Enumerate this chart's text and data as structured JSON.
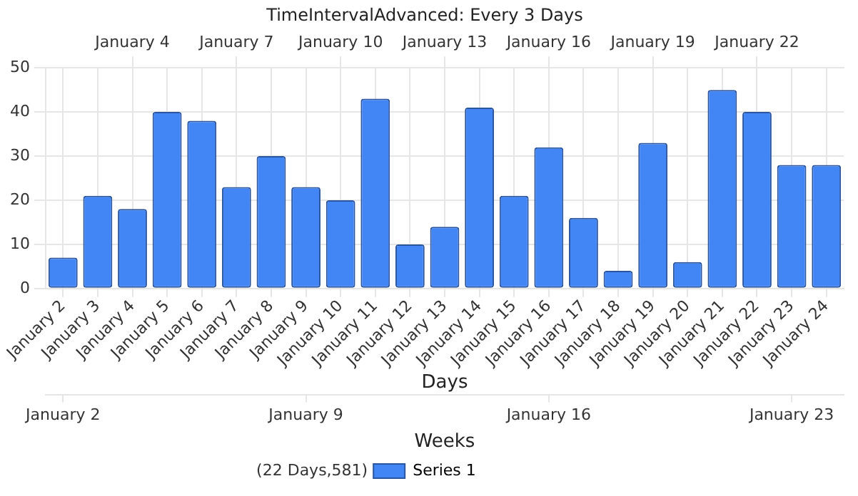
{
  "chart_data": {
    "type": "bar",
    "title": "TimeIntervalAdvanced: Every 3 Days",
    "xlabel": "Days",
    "legend_title": "(22 Days,581)",
    "categories": [
      "January 2",
      "January 3",
      "January 4",
      "January 5",
      "January 6",
      "January 7",
      "January 8",
      "January 9",
      "January 10",
      "January 11",
      "January 12",
      "January 13",
      "January 14",
      "January 15",
      "January 16",
      "January 17",
      "January 18",
      "January 19",
      "January 20",
      "January 21",
      "January 22",
      "January 23",
      "January 24"
    ],
    "series": [
      {
        "name": "Series 1",
        "color": "#4285f4",
        "values": [
          7,
          21,
          18,
          40,
          38,
          23,
          30,
          23,
          20,
          43,
          10,
          14,
          41,
          21,
          32,
          16,
          4,
          33,
          6,
          45,
          40,
          28,
          28
        ]
      }
    ],
    "x2lim": [
      "--01-01T12:00",
      "--01-24T12:00"
    ],
    "x2ticks": [
      {
        "value": "--01-04",
        "label": "January 4"
      },
      {
        "value": "--01-07",
        "label": "January 7"
      },
      {
        "value": "--01-10",
        "label": "January 10"
      },
      {
        "value": "--01-13",
        "label": "January 13"
      },
      {
        "value": "--01-16",
        "label": "January 16"
      },
      {
        "value": "--01-19",
        "label": "January 19"
      },
      {
        "value": "--01-22",
        "label": "January 22"
      }
    ],
    "annotations": [
      "Weeks",
      "January 2",
      "January 9",
      "January 16",
      "January 23"
    ],
    "ylim": [
      0,
      50
    ],
    "yticks": [
      0,
      10,
      20,
      30,
      40,
      50
    ],
    "grid": true,
    "legend": "bottom"
  }
}
